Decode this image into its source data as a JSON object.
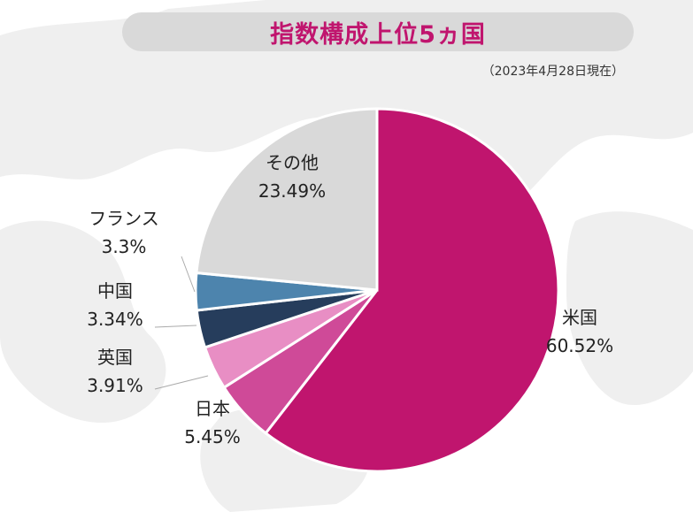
{
  "header": {
    "title": "指数構成上位5ヵ国",
    "date_note": "（2023年4月28日現在）"
  },
  "chart_data": {
    "type": "pie",
    "start_angle_deg": 0,
    "direction": "clockwise",
    "slices": [
      {
        "label": "米国",
        "value": 60.52,
        "value_label": "60.52%",
        "color": "#c0156e"
      },
      {
        "label": "日本",
        "value": 5.45,
        "value_label": "5.45%",
        "color": "#cf4a98"
      },
      {
        "label": "英国",
        "value": 3.91,
        "value_label": "3.91%",
        "color": "#e88ec4"
      },
      {
        "label": "中国",
        "value": 3.34,
        "value_label": "3.34%",
        "color": "#263d5c"
      },
      {
        "label": "フランス",
        "value": 3.3,
        "value_label": "3.3%",
        "color": "#4d84ad"
      },
      {
        "label": "その他",
        "value": 23.49,
        "value_label": "23.49%",
        "color": "#d9d9d9"
      }
    ]
  }
}
